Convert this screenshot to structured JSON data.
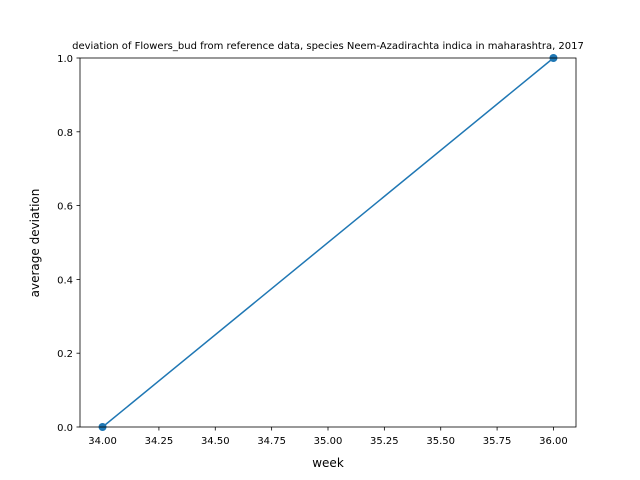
{
  "chart_data": {
    "type": "line",
    "title": "deviation of Flowers_bud from reference data, species Neem-Azadirachta indica in maharashtra, 2017",
    "xlabel": "week",
    "ylabel": "average deviation",
    "x": [
      34,
      36
    ],
    "series": [
      {
        "values": [
          0.0,
          1.0
        ],
        "color": "#1f77b4",
        "marker": "circle"
      }
    ],
    "xlim": [
      33.9,
      36.1
    ],
    "ylim": [
      0.0,
      1.0
    ],
    "xticks": [
      34.0,
      34.25,
      34.5,
      34.75,
      35.0,
      35.25,
      35.5,
      35.75,
      36.0
    ],
    "xtick_labels": [
      "34.00",
      "34.25",
      "34.50",
      "34.75",
      "35.00",
      "35.25",
      "35.50",
      "35.75",
      "36.00"
    ],
    "yticks": [
      0.0,
      0.2,
      0.4,
      0.6,
      0.8,
      1.0
    ],
    "ytick_labels": [
      "0.0",
      "0.2",
      "0.4",
      "0.6",
      "0.8",
      "1.0"
    ],
    "grid": false,
    "legend": "none"
  }
}
